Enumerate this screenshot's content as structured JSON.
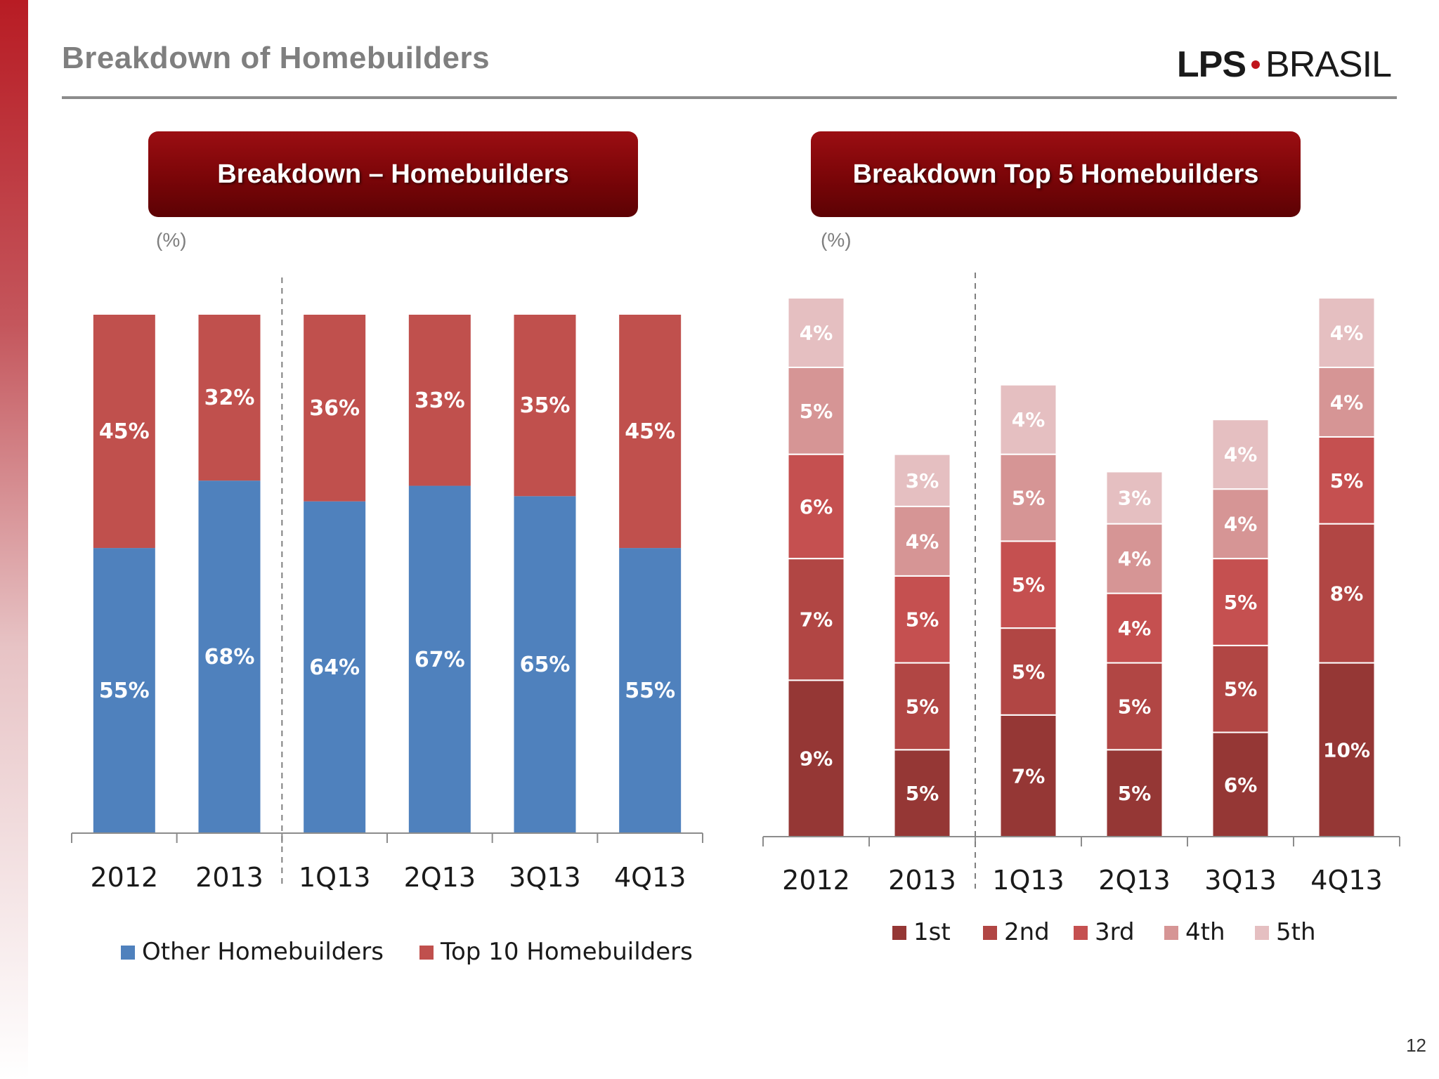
{
  "page": {
    "title": "Breakdown of Homebuilders",
    "page_number": "12"
  },
  "logo": {
    "lps": "LPS",
    "brasil": "BRASIL"
  },
  "colors": {
    "other": "#4f81bd",
    "top10": "#c0504d",
    "rank1": "#953735",
    "rank2": "#b14644",
    "rank3": "#c55050",
    "rank4": "#d69595",
    "rank5": "#e5bfc1"
  },
  "left_chart": {
    "header": "Breakdown – Homebuilders",
    "unit_note": "(%)"
  },
  "right_chart": {
    "header": "Breakdown  Top 5 Homebuilders",
    "unit_note": "(%)"
  },
  "chart_data": [
    {
      "type": "bar",
      "stacked": true,
      "title": "Breakdown – Homebuilders",
      "categories": [
        "2012",
        "2013",
        "1Q13",
        "2Q13",
        "3Q13",
        "4Q13"
      ],
      "series": [
        {
          "name": "Other Homebuilders",
          "values": [
            55,
            68,
            64,
            67,
            65,
            55
          ],
          "labels": [
            "55%",
            "68%",
            "64%",
            "67%",
            "65%",
            "55%"
          ]
        },
        {
          "name": "Top 10 Homebuilders",
          "values": [
            45,
            32,
            36,
            33,
            35,
            45
          ],
          "labels": [
            "45%",
            "32%",
            "36%",
            "33%",
            "35%",
            "45%"
          ]
        }
      ],
      "ylim": [
        0,
        100
      ],
      "grid": false,
      "legend": "bottom"
    },
    {
      "type": "bar",
      "stacked": true,
      "title": "Breakdown  Top 5 Homebuilders",
      "categories": [
        "2012",
        "2013",
        "1Q13",
        "2Q13",
        "3Q13",
        "4Q13"
      ],
      "series": [
        {
          "name": "1st",
          "values": [
            9,
            5,
            7,
            5,
            6,
            10
          ],
          "labels": [
            "9%",
            "5%",
            "7%",
            "5%",
            "6%",
            "10%"
          ]
        },
        {
          "name": "2nd",
          "values": [
            7,
            5,
            5,
            5,
            5,
            8
          ],
          "labels": [
            "7%",
            "5%",
            "5%",
            "5%",
            "5%",
            "8%"
          ]
        },
        {
          "name": "3rd",
          "values": [
            6,
            5,
            5,
            4,
            5,
            5
          ],
          "labels": [
            "6%",
            "5%",
            "5%",
            "4%",
            "5%",
            "5%"
          ]
        },
        {
          "name": "4th",
          "values": [
            5,
            4,
            5,
            4,
            4,
            4
          ],
          "labels": [
            "5%",
            "4%",
            "5%",
            "4%",
            "4%",
            "4%"
          ]
        },
        {
          "name": "5th",
          "values": [
            4,
            3,
            4,
            3,
            4,
            4
          ],
          "labels": [
            "4%",
            "3%",
            "4%",
            "3%",
            "4%",
            "4%"
          ]
        }
      ],
      "grid": false,
      "legend": "bottom"
    }
  ]
}
